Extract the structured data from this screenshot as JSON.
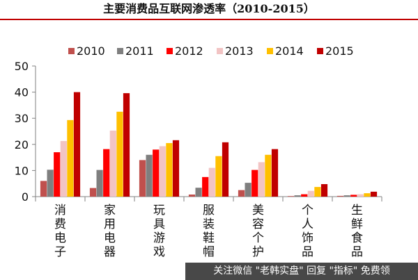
{
  "title": "主要消费品互联网渗透率（2010-2015）",
  "watermark": "关注微信 \"老韩实盘\" 回复 \"指标\" 免费领",
  "colors": {
    "2010": "#c0504d",
    "2011": "#7f7f7f",
    "2012": "#ff0000",
    "2013": "#f2c4c4",
    "2014": "#ffc000",
    "2015": "#c00000",
    "accent_rule": "#c00000"
  },
  "chart_data": {
    "type": "bar",
    "title": "主要消费品互联网渗透率（2010-2015）",
    "categories": [
      "消费电子",
      "家用电器",
      "玩具游戏",
      "服装鞋帽",
      "美容个护",
      "个人饰品",
      "生鲜食品"
    ],
    "series": [
      {
        "name": "2010",
        "values": [
          6,
          3.3,
          14,
          0.8,
          2.5,
          0.2,
          0.3
        ]
      },
      {
        "name": "2011",
        "values": [
          10.3,
          10.2,
          16,
          3.4,
          5.3,
          0.5,
          0.5
        ]
      },
      {
        "name": "2012",
        "values": [
          17,
          18.2,
          18,
          7.5,
          10.2,
          0.9,
          0.7
        ]
      },
      {
        "name": "2013",
        "values": [
          21.3,
          25.3,
          19.3,
          11,
          13.2,
          2.2,
          0.9
        ]
      },
      {
        "name": "2014",
        "values": [
          29.3,
          32.5,
          20.5,
          15.5,
          16,
          3.7,
          1.3
        ]
      },
      {
        "name": "2015",
        "values": [
          40,
          39.6,
          21.6,
          20.8,
          18.2,
          4.8,
          1.9
        ]
      }
    ],
    "ylim": [
      0,
      50
    ],
    "yticks": [
      "0",
      "10",
      "20",
      "30",
      "40",
      "50"
    ],
    "xlabel": "",
    "ylabel": "",
    "grid": false,
    "legend_position": "top"
  }
}
